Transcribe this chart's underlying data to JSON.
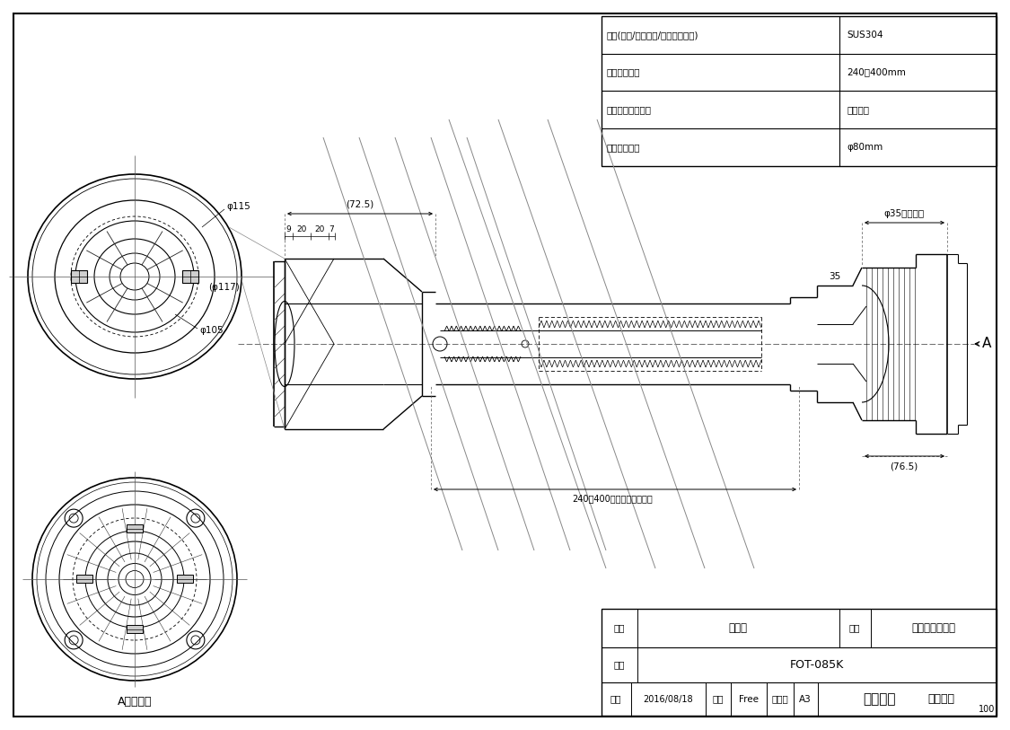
{
  "bg_color": "#ffffff",
  "line_color": "#000000",
  "spec_rows": [
    [
      "材質(本体/スリーブ/チャンバー室)",
      "SUS304"
    ],
    [
      "壁厚調整範囲",
      "240〜400mm"
    ],
    [
      "排気吹き出し方向",
      "斜め全周"
    ],
    [
      "壁貫通部穴径",
      "φ80mm"
    ]
  ],
  "page_number": "100",
  "name_label": "外観図",
  "hinmei_label": "品名",
  "hinmei_value": "ウォールトップ",
  "name_kanji": "名称",
  "type_label": "型式",
  "type_value": "FOT-085K",
  "date_label": "作成",
  "date_value": "2016/08/18",
  "scale_label": "尺度",
  "scale_value": "Free",
  "size_label": "サイズ",
  "size_value": "A3",
  "company_bold": "リンナイ",
  "company_normal": "株式会社",
  "dim_72_5": "(72.5)",
  "dim_76_5": "(76.5)",
  "dim_240_400": "240「400(壁厚調整範囲)",
  "dim_phi35": "φ35（外径）",
  "dim_35": "35",
  "label_a": "A",
  "label_a_kara": "Aカラ見ル",
  "phi115": "φ115",
  "phi117": "(φ117)",
  "phi105": "φ105",
  "dims_small": [
    "9",
    "20",
    "20",
    "7"
  ]
}
